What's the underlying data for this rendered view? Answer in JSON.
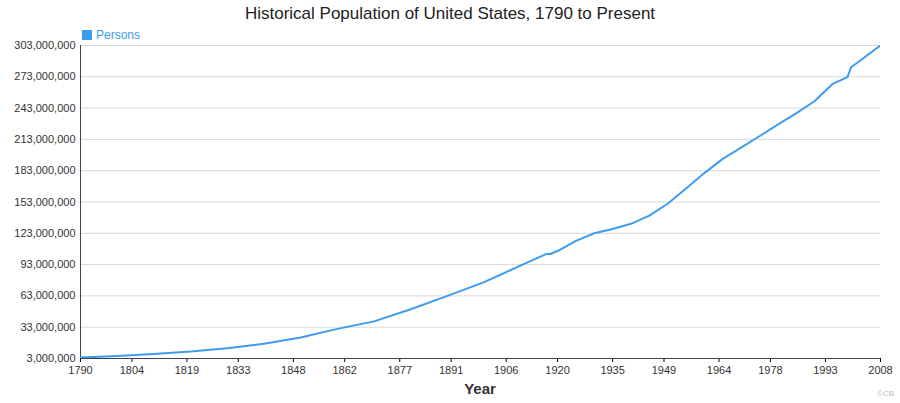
{
  "chart_data": {
    "type": "line",
    "title": "Historical Population of United States, 1790 to Present",
    "x_label": "Year",
    "credit": "©CB",
    "x": [
      1790,
      1800,
      1810,
      1820,
      1830,
      1840,
      1850,
      1860,
      1870,
      1880,
      1890,
      1900,
      1910,
      1917,
      1918,
      1920,
      1925,
      1930,
      1935,
      1940,
      1945,
      1950,
      1955,
      1960,
      1965,
      1970,
      1975,
      1980,
      1985,
      1990,
      1995,
      1999,
      2000,
      2008
    ],
    "series": [
      {
        "name": "Persons",
        "color": "#3d9cf0",
        "values": [
          3900000,
          5300000,
          7200000,
          9600000,
          12900000,
          17100000,
          23200000,
          31400000,
          38600000,
          50200000,
          63000000,
          76200000,
          92200000,
          103200000,
          103200000,
          106000000,
          115800000,
          123000000,
          127200000,
          132100000,
          140000000,
          151300000,
          165900000,
          180700000,
          194300000,
          205100000,
          216000000,
          227200000,
          237900000,
          249600000,
          266300000,
          272700000,
          282200000,
          303000000
        ]
      }
    ],
    "xlim": [
      1790,
      2008
    ],
    "xticks": [
      1790,
      1804,
      1819,
      1833,
      1848,
      1862,
      1877,
      1891,
      1906,
      1920,
      1935,
      1949,
      1964,
      1978,
      1993,
      2008
    ],
    "ylim": [
      3000000,
      303000000
    ],
    "yticks": [
      {
        "value": 3000000,
        "label": "3,000,000"
      },
      {
        "value": 33000000,
        "label": "33,000,000"
      },
      {
        "value": 63000000,
        "label": "63,000,000"
      },
      {
        "value": 93000000,
        "label": "93,000,000"
      },
      {
        "value": 123000000,
        "label": "123,000,000"
      },
      {
        "value": 153000000,
        "label": "153,000,000"
      },
      {
        "value": 183000000,
        "label": "183,000,000"
      },
      {
        "value": 213000000,
        "label": "213,000,000"
      },
      {
        "value": 243000000,
        "label": "243,000,000"
      },
      {
        "value": 273000000,
        "label": "273,000,000"
      },
      {
        "value": 303000000,
        "label": "303,000,000"
      }
    ],
    "grid": true,
    "legend": "top-left"
  }
}
